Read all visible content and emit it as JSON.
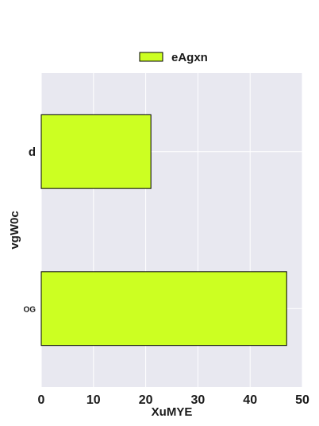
{
  "chart_data": {
    "type": "bar",
    "orientation": "horizontal",
    "title": "",
    "xlabel": "XuMYE",
    "ylabel": "vgW0c",
    "categories": [
      "d",
      "OG"
    ],
    "category_label_styles": [
      "bold",
      "small"
    ],
    "series": [
      {
        "name": "eAgxn",
        "values": [
          21,
          47
        ],
        "color": "#ccff22"
      }
    ],
    "xlim": [
      0,
      50
    ],
    "xticks": [
      "0",
      "10",
      "20",
      "30",
      "40",
      "50"
    ],
    "grid": true,
    "legend_position": "top-center",
    "colors": {
      "plot_background": "#e8e8f0",
      "grid": "#ffffff",
      "bar_edge": "#000000"
    }
  }
}
